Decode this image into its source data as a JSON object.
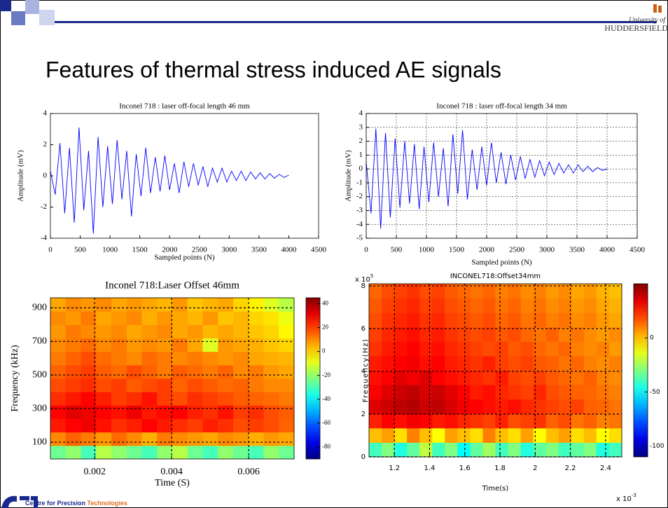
{
  "slide": {
    "title": "Features of thermal stress induced AE signals",
    "logo_line1": "University of",
    "logo_line2": "HUDDERSFIELD",
    "footer_org": "Centre for Precision",
    "footer_highlight": "Technologies"
  },
  "chart_data": [
    {
      "type": "line",
      "title": "Inconel 718 : laser off-focal length 46 mm",
      "x_label": "Sampled points (N)",
      "y_label": "Amplitude (mV)",
      "color": "#0000ff",
      "grid": false,
      "x": [
        0,
        80,
        160,
        240,
        320,
        400,
        480,
        560,
        640,
        720,
        800,
        880,
        960,
        1040,
        1120,
        1200,
        1280,
        1360,
        1440,
        1520,
        1600,
        1680,
        1760,
        1840,
        1920,
        2000,
        2080,
        2160,
        2240,
        2320,
        2400,
        2480,
        2560,
        2640,
        2720,
        2800,
        2880,
        2960,
        3040,
        3120,
        3200,
        3280,
        3360,
        3440,
        3520,
        3600,
        3680,
        3760,
        3840,
        3920,
        4000
      ],
      "values": [
        0.3,
        -1.2,
        2.1,
        -2.4,
        1.8,
        -3.0,
        3.1,
        -2.2,
        1.6,
        -3.7,
        2.5,
        -2.0,
        1.9,
        -1.8,
        2.3,
        -1.5,
        1.6,
        -2.6,
        1.4,
        -1.3,
        1.8,
        -1.1,
        1.2,
        -1.0,
        1.3,
        -0.9,
        0.8,
        -1.1,
        0.9,
        -0.7,
        0.8,
        -0.6,
        0.6,
        -0.7,
        0.5,
        -0.4,
        0.5,
        -0.4,
        0.3,
        -0.3,
        0.3,
        -0.3,
        0.25,
        -0.2,
        0.2,
        -0.2,
        0.15,
        -0.15,
        0.1,
        -0.1,
        0.05
      ],
      "xlim": [
        0,
        4500
      ],
      "xticks": [
        0,
        500,
        1000,
        1500,
        2000,
        2500,
        3000,
        3500,
        4000,
        4500
      ],
      "ylim": [
        -4,
        4
      ],
      "yticks": [
        -4,
        -2,
        0,
        2,
        4
      ]
    },
    {
      "type": "line",
      "title": "Inconel 718 : laser off-focal length 34 mm",
      "x_label": "Sampled points (N)",
      "y_label": "Amplitude (mV)",
      "color": "#0000ff",
      "grid": true,
      "x": [
        0,
        80,
        160,
        240,
        320,
        400,
        480,
        560,
        640,
        720,
        800,
        880,
        960,
        1040,
        1120,
        1200,
        1280,
        1360,
        1440,
        1520,
        1600,
        1680,
        1760,
        1840,
        1920,
        2000,
        2080,
        2160,
        2240,
        2320,
        2400,
        2480,
        2560,
        2640,
        2720,
        2800,
        2880,
        2960,
        3040,
        3120,
        3200,
        3280,
        3360,
        3440,
        3520,
        3600,
        3680,
        3760,
        3840,
        3920,
        4000
      ],
      "values": [
        0.5,
        -3.2,
        2.9,
        -4.3,
        2.6,
        -3.5,
        2.2,
        -2.8,
        2.0,
        -2.5,
        1.8,
        -2.9,
        1.6,
        -2.4,
        1.9,
        -2.0,
        1.5,
        -2.7,
        2.5,
        -1.8,
        2.8,
        -2.2,
        1.4,
        -1.5,
        1.6,
        -1.2,
        1.9,
        -1.0,
        1.2,
        -1.1,
        1.0,
        -0.8,
        0.9,
        -0.7,
        0.7,
        -0.6,
        0.6,
        -0.5,
        0.5,
        -0.4,
        0.4,
        -0.3,
        0.3,
        -0.3,
        0.3,
        -0.2,
        0.2,
        -0.2,
        0.1,
        -0.1,
        0.0
      ],
      "xlim": [
        0,
        4500
      ],
      "xticks": [
        0,
        500,
        1000,
        1500,
        2000,
        2500,
        3000,
        3500,
        4000,
        4500
      ],
      "ylim": [
        -5,
        4
      ],
      "yticks": [
        -5,
        -4,
        -3,
        -2,
        -1,
        0,
        1,
        2,
        3,
        4
      ]
    },
    {
      "type": "heatmap",
      "title": "Inconel 718:Laser Offset 46mm",
      "x_label": "Time (S)",
      "y_label": "Frequency (kHz)",
      "grid": true,
      "xlim": [
        0.00085,
        0.00718
      ],
      "xticks": [
        0.002,
        0.004,
        0.006
      ],
      "ylim": [
        0,
        960
      ],
      "yticks": [
        100,
        300,
        500,
        700,
        900
      ],
      "clim": [
        -90,
        45
      ],
      "colorbar_ticks": [
        40,
        20,
        0,
        -20,
        -40,
        -60,
        -80
      ],
      "z": [
        [
          -25,
          -20,
          -30,
          -15,
          -20,
          -25,
          -30,
          -20,
          -15,
          -25,
          -30,
          -20,
          -25,
          -30,
          -20,
          -25
        ],
        [
          10,
          15,
          12,
          8,
          14,
          10,
          5,
          12,
          10,
          8,
          6,
          10,
          8,
          5,
          8,
          6
        ],
        [
          25,
          28,
          30,
          26,
          22,
          24,
          28,
          25,
          22,
          20,
          24,
          22,
          18,
          20,
          18,
          15
        ],
        [
          28,
          32,
          30,
          28,
          26,
          30,
          25,
          27,
          28,
          24,
          22,
          26,
          20,
          22,
          18,
          16
        ],
        [
          22,
          25,
          28,
          24,
          20,
          22,
          26,
          20,
          18,
          22,
          20,
          18,
          16,
          15,
          14,
          12
        ],
        [
          18,
          20,
          22,
          18,
          20,
          16,
          18,
          20,
          15,
          18,
          16,
          14,
          15,
          12,
          10,
          10
        ],
        [
          15,
          18,
          20,
          16,
          14,
          18,
          15,
          12,
          16,
          14,
          12,
          15,
          10,
          12,
          8,
          6
        ],
        [
          12,
          15,
          18,
          14,
          12,
          10,
          14,
          12,
          10,
          12,
          10,
          8,
          10,
          6,
          5,
          4
        ],
        [
          10,
          12,
          14,
          10,
          12,
          8,
          10,
          8,
          12,
          6,
          -10,
          8,
          6,
          5,
          2,
          0
        ],
        [
          8,
          12,
          10,
          8,
          10,
          6,
          8,
          10,
          6,
          8,
          4,
          6,
          4,
          2,
          0,
          -5
        ],
        [
          10,
          8,
          12,
          6,
          8,
          10,
          5,
          8,
          6,
          4,
          8,
          2,
          4,
          0,
          -2,
          -8
        ],
        [
          6,
          10,
          8,
          10,
          6,
          8,
          6,
          4,
          8,
          2,
          4,
          6,
          0,
          -4,
          -10,
          -15
        ]
      ]
    },
    {
      "type": "heatmap",
      "title": "INCONEL718:Offset34mm",
      "x_label": "Time(s)",
      "y_label": "Frequency(Hz)",
      "grid": true,
      "x_scale_base": "x 10",
      "x_scale_exponent": "-3",
      "y_scale_base": "x 10",
      "y_scale_exponent": "5",
      "xlim": [
        1.056,
        2.492
      ],
      "xticks": [
        1.2,
        1.4,
        1.6,
        1.8,
        2,
        2.2,
        2.4
      ],
      "ylim": [
        0,
        8.1
      ],
      "yticks": [
        0,
        2,
        4,
        6,
        8
      ],
      "clim": [
        -110,
        50
      ],
      "colorbar_ticks": [
        0,
        -50,
        -100
      ],
      "z": [
        [
          -40,
          -30,
          -45,
          -35,
          -20,
          -40,
          -30,
          -50,
          -35,
          -25,
          -40,
          -30,
          -45,
          -35,
          -30,
          -40,
          -35,
          -30,
          -45,
          -40
        ],
        [
          0,
          5,
          -5,
          10,
          0,
          -10,
          5,
          0,
          -5,
          10,
          0,
          -5,
          5,
          -10,
          0,
          5,
          -5,
          0,
          -10,
          -5
        ],
        [
          25,
          30,
          28,
          32,
          30,
          26,
          28,
          24,
          22,
          20,
          25,
          18,
          20,
          22,
          15,
          18,
          12,
          15,
          10,
          12
        ],
        [
          35,
          38,
          40,
          42,
          38,
          40,
          36,
          32,
          30,
          28,
          26,
          28,
          24,
          22,
          20,
          18,
          20,
          15,
          14,
          12
        ],
        [
          30,
          35,
          38,
          40,
          36,
          38,
          34,
          30,
          26,
          28,
          24,
          22,
          20,
          24,
          18,
          16,
          15,
          14,
          12,
          10
        ],
        [
          28,
          30,
          34,
          32,
          35,
          30,
          28,
          26,
          24,
          22,
          26,
          20,
          18,
          20,
          16,
          14,
          12,
          15,
          10,
          8
        ],
        [
          26,
          28,
          30,
          32,
          28,
          30,
          26,
          24,
          22,
          25,
          20,
          18,
          20,
          16,
          15,
          12,
          14,
          10,
          8,
          10
        ],
        [
          22,
          26,
          28,
          30,
          26,
          28,
          24,
          22,
          20,
          18,
          20,
          16,
          18,
          14,
          12,
          14,
          10,
          8,
          10,
          6
        ],
        [
          20,
          24,
          26,
          28,
          24,
          26,
          22,
          20,
          18,
          20,
          16,
          18,
          14,
          12,
          15,
          10,
          12,
          8,
          6,
          8
        ],
        [
          18,
          22,
          24,
          26,
          22,
          24,
          20,
          18,
          16,
          18,
          14,
          16,
          12,
          14,
          10,
          12,
          8,
          10,
          6,
          4
        ],
        [
          16,
          20,
          22,
          24,
          20,
          22,
          18,
          16,
          14,
          16,
          12,
          14,
          10,
          12,
          8,
          10,
          6,
          8,
          4,
          2
        ],
        [
          14,
          18,
          20,
          22,
          18,
          20,
          16,
          14,
          12,
          14,
          10,
          12,
          8,
          10,
          6,
          8,
          4,
          6,
          2,
          0
        ]
      ]
    }
  ]
}
